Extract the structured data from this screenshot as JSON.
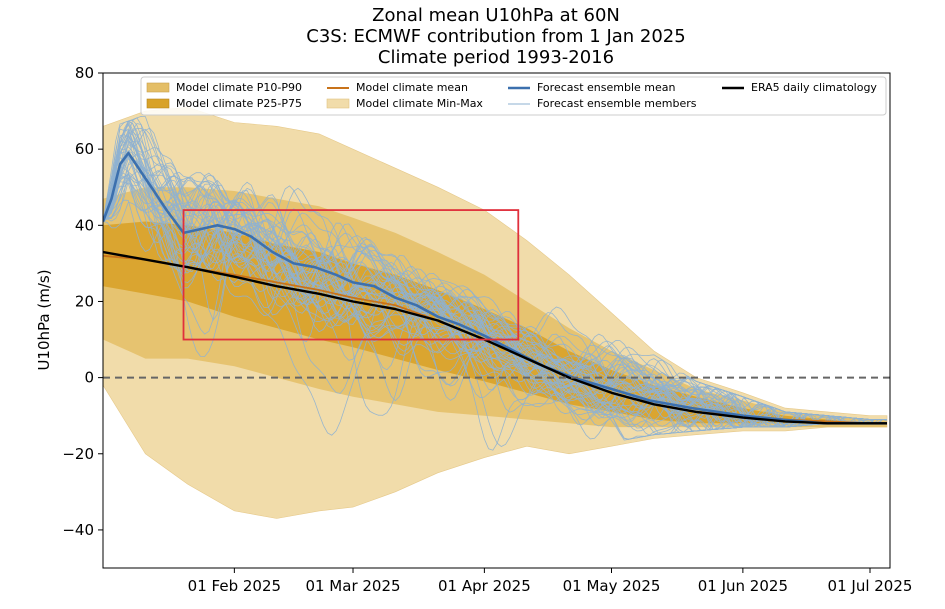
{
  "chart_data": {
    "type": "line",
    "title_lines": [
      "Zonal mean U10hPa at 60N",
      "C3S: ECMWF contribution from 1 Jan 2025",
      "Climate period 1993-2016"
    ],
    "ylabel": "U10hPa (m/s)",
    "xlabel": "",
    "xlim": [
      "2025-01-01",
      "2025-07-01"
    ],
    "ylim": [
      -50,
      80
    ],
    "x_ticks": [
      {
        "date": "2025-02-01",
        "label": "01 Feb 2025"
      },
      {
        "date": "2025-03-01",
        "label": "01 Mar 2025"
      },
      {
        "date": "2025-04-01",
        "label": "01 Apr 2025"
      },
      {
        "date": "2025-05-01",
        "label": "01 May 2025"
      },
      {
        "date": "2025-06-01",
        "label": "01 Jun 2025"
      },
      {
        "date": "2025-07-01",
        "label": "01 Jul 2025"
      }
    ],
    "y_ticks": [
      {
        "value": 80,
        "label": "80"
      },
      {
        "value": 60,
        "label": "60"
      },
      {
        "value": 40,
        "label": "40"
      },
      {
        "value": 20,
        "label": "20"
      },
      {
        "value": 0,
        "label": "0"
      },
      {
        "value": -20,
        "label": "−20"
      },
      {
        "value": -40,
        "label": "−40"
      }
    ],
    "zero_line": {
      "value": 0,
      "style": "dashed",
      "color": "#666666"
    },
    "legend_position": "top",
    "legend": [
      {
        "key": "p10p90",
        "label": "Model climate P10-P90",
        "kind": "patch",
        "color": "#e4be66"
      },
      {
        "key": "p25p75",
        "label": "Model climate P25-P75",
        "kind": "patch",
        "color": "#d8a229"
      },
      {
        "key": "clim_mean",
        "label": "Model climate mean",
        "kind": "line",
        "color": "#c8731a"
      },
      {
        "key": "minmax",
        "label": "Model climate Min-Max",
        "kind": "patch",
        "color": "#f1dcaa"
      },
      {
        "key": "ens_mean",
        "label": "Forecast ensemble mean",
        "kind": "line",
        "color": "#3c70ae"
      },
      {
        "key": "ens_members",
        "label": "Forecast ensemble members",
        "kind": "line",
        "color": "#8eb1d2"
      },
      {
        "key": "era5",
        "label": "ERA5 daily climatology",
        "kind": "line",
        "color": "#000000"
      }
    ],
    "colors": {
      "minmax": "#f1dcaa",
      "p10p90": "#e4be66",
      "p25p75": "#d8a229",
      "clim_mean": "#c8731a",
      "ens_mean": "#3c70ae",
      "ens_members": "#8eb1d2",
      "era5": "#000000",
      "highlight_box": "#e0303c"
    },
    "bands": {
      "x": [
        "2025-01-01",
        "2025-01-11",
        "2025-01-21",
        "2025-02-01",
        "2025-02-11",
        "2025-02-21",
        "2025-03-01",
        "2025-03-11",
        "2025-03-21",
        "2025-04-01",
        "2025-04-11",
        "2025-04-21",
        "2025-05-01",
        "2025-05-11",
        "2025-05-21",
        "2025-06-01",
        "2025-06-11",
        "2025-06-21",
        "2025-07-01",
        "2025-07-05"
      ],
      "minmax_upper": [
        66,
        70,
        71,
        67,
        66,
        64,
        60,
        55,
        50,
        44,
        36,
        27,
        17,
        7,
        0,
        -4,
        -8,
        -9,
        -10,
        -10
      ],
      "minmax_lower": [
        -2,
        -20,
        -28,
        -35,
        -37,
        -35,
        -34,
        -30,
        -25,
        -21,
        -18,
        -20,
        -18,
        -16,
        -15,
        -14,
        -14,
        -13,
        -13,
        -13
      ],
      "p10p90_upper": [
        47,
        50,
        50,
        49,
        47,
        45,
        42,
        38,
        33,
        27,
        20,
        13,
        7,
        2,
        -3,
        -6,
        -9,
        -10,
        -11,
        -11
      ],
      "p10p90_lower": [
        10,
        5,
        5,
        3,
        0,
        -3,
        -5,
        -7,
        -9,
        -10,
        -11,
        -12,
        -13,
        -13,
        -13,
        -13,
        -13,
        -13,
        -13,
        -13
      ],
      "p25p75_upper": [
        40,
        41,
        40,
        38,
        35,
        33,
        30,
        27,
        23,
        18,
        13,
        7,
        2,
        -2,
        -5,
        -8,
        -10,
        -11,
        -12,
        -12
      ],
      "p25p75_lower": [
        24,
        22,
        20,
        16,
        13,
        10,
        8,
        5,
        2,
        -1,
        -4,
        -7,
        -9,
        -11,
        -12,
        -12,
        -12,
        -12,
        -12,
        -12
      ],
      "clim_mean": [
        32,
        31,
        29,
        27,
        25,
        23,
        21,
        19,
        15,
        10,
        5,
        0,
        -4,
        -7,
        -9,
        -10,
        -11,
        -11.5,
        -12,
        -12
      ],
      "era5": [
        33,
        31,
        29,
        26.5,
        24,
        22,
        20,
        18,
        15,
        10,
        5,
        0,
        -4,
        -7,
        -9,
        -10.5,
        -11.5,
        -12,
        -12,
        -12
      ]
    },
    "ensemble_mean": {
      "x": [
        "2025-01-01",
        "2025-01-03",
        "2025-01-05",
        "2025-01-07",
        "2025-01-10",
        "2025-01-13",
        "2025-01-16",
        "2025-01-20",
        "2025-01-24",
        "2025-01-28",
        "2025-02-01",
        "2025-02-05",
        "2025-02-10",
        "2025-02-15",
        "2025-02-20",
        "2025-02-25",
        "2025-03-01",
        "2025-03-06",
        "2025-03-11",
        "2025-03-16",
        "2025-03-21",
        "2025-03-26",
        "2025-04-01",
        "2025-04-08",
        "2025-04-15",
        "2025-04-22",
        "2025-05-01",
        "2025-05-10",
        "2025-05-20",
        "2025-06-01",
        "2025-06-10",
        "2025-06-20",
        "2025-07-01",
        "2025-07-05"
      ],
      "values": [
        41,
        47,
        56,
        59,
        54,
        49,
        44,
        38,
        39,
        40,
        39,
        37,
        33,
        30,
        29,
        27,
        25,
        24,
        21,
        19,
        16,
        14,
        11,
        7,
        3,
        0,
        -3,
        -6,
        -8,
        -10,
        -11,
        -12,
        -12,
        -12
      ]
    },
    "ensemble_member_count": 51,
    "highlight_box": {
      "x0": "2025-01-20",
      "x1": "2025-04-09",
      "y0": 10,
      "y1": 44,
      "color": "#e0303c"
    }
  }
}
